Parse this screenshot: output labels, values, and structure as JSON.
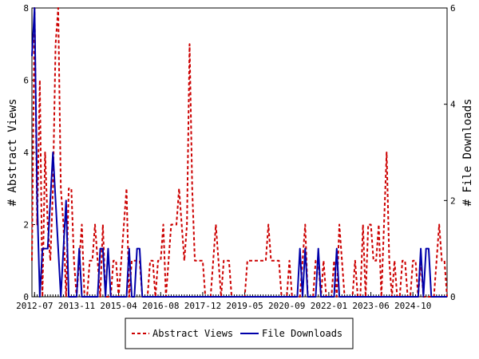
{
  "chart_data": {
    "type": "line",
    "xlabel": "",
    "ylabel_left": "# Abstract Views",
    "ylabel_right": "# File Downloads",
    "ylim_left": [
      0,
      8
    ],
    "ylim_right": [
      0,
      6
    ],
    "yticks_left": [
      "0",
      "2",
      "4",
      "6",
      "8"
    ],
    "yticks_right": [
      "0",
      "2",
      "4",
      "6"
    ],
    "x_tick_labels": [
      "2012-07",
      "2013-11",
      "2015-04",
      "2016-08",
      "2017-12",
      "2019-05",
      "2020-09",
      "2022-01",
      "2023-06",
      "2024-10"
    ],
    "x_start_month": "2012-06",
    "x_months": 159,
    "legend_position": "bottom",
    "colors": {
      "abstract_views": "#cc0000",
      "file_downloads": "#0000aa"
    },
    "series": [
      {
        "name": "Abstract Views",
        "axis": "left",
        "style": "dashed",
        "values": [
          1,
          8,
          2,
          6,
          0,
          4,
          2,
          1,
          3,
          7,
          8,
          3,
          2,
          0,
          3,
          3,
          1,
          0,
          1,
          2,
          0,
          0,
          1,
          1,
          2,
          1,
          0,
          2,
          0,
          0,
          0,
          1,
          1,
          0,
          1,
          2,
          3,
          0,
          1,
          1,
          1,
          1,
          0,
          0,
          0,
          1,
          1,
          0,
          1,
          1,
          2,
          0,
          1,
          2,
          2,
          2,
          3,
          2,
          1,
          2,
          7,
          3,
          1,
          1,
          1,
          1,
          0,
          0,
          0,
          1,
          2,
          1,
          0,
          1,
          1,
          1,
          0,
          0,
          0,
          0,
          0,
          0,
          1,
          1,
          1,
          1,
          1,
          1,
          1,
          1,
          2,
          1,
          1,
          1,
          1,
          0,
          0,
          0,
          1,
          0,
          0,
          0,
          0,
          1,
          2,
          0,
          0,
          0,
          1,
          1,
          0,
          1,
          0,
          0,
          0,
          1,
          0,
          2,
          1,
          0,
          0,
          0,
          0,
          1,
          0,
          0,
          2,
          0,
          2,
          2,
          1,
          1,
          2,
          0,
          2,
          4,
          1,
          0,
          1,
          0,
          0,
          1,
          1,
          0,
          0,
          1,
          1,
          0,
          1,
          0,
          0,
          0,
          0,
          0,
          1,
          2,
          1,
          1,
          0
        ]
      },
      {
        "name": "File Downloads",
        "axis": "right",
        "style": "solid",
        "values": [
          5,
          6,
          2,
          0,
          1,
          1,
          1,
          2,
          3,
          2,
          1,
          0,
          1,
          2,
          0,
          0,
          0,
          0,
          1,
          0,
          0,
          0,
          0,
          0,
          0,
          0,
          1,
          1,
          0,
          1,
          0,
          0,
          0,
          0,
          0,
          0,
          0,
          1,
          0,
          0,
          1,
          1,
          0,
          0,
          0,
          0,
          0,
          0,
          0,
          0,
          0,
          0,
          0,
          0,
          0,
          0,
          0,
          0,
          0,
          0,
          0,
          0,
          0,
          0,
          0,
          0,
          0,
          0,
          0,
          0,
          0,
          0,
          0,
          0,
          0,
          0,
          0,
          0,
          0,
          0,
          0,
          0,
          0,
          0,
          0,
          0,
          0,
          0,
          0,
          0,
          0,
          0,
          0,
          0,
          0,
          0,
          0,
          0,
          0,
          0,
          0,
          0,
          1,
          0,
          1,
          0,
          0,
          0,
          0,
          1,
          0,
          0,
          0,
          0,
          0,
          0,
          1,
          0,
          0,
          0,
          0,
          0,
          0,
          0,
          0,
          0,
          0,
          0,
          0,
          0,
          0,
          0,
          0,
          0,
          0,
          0,
          0,
          0,
          0,
          0,
          0,
          0,
          0,
          0,
          0,
          0,
          0,
          0,
          1,
          0,
          1,
          1,
          0,
          0,
          0,
          0,
          0,
          0,
          0
        ]
      }
    ]
  }
}
